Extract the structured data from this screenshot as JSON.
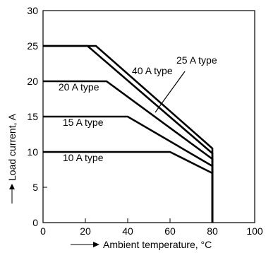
{
  "chart_data": {
    "type": "line",
    "xlabel": "Ambient temperature, °C",
    "ylabel": "Load current, A",
    "xlim": [
      0,
      100
    ],
    "ylim": [
      0,
      30
    ],
    "xticks": [
      "0",
      "20",
      "40",
      "60",
      "80",
      "100"
    ],
    "yticks": [
      "0",
      "5",
      "10",
      "15",
      "20",
      "25",
      "30"
    ],
    "grid": false,
    "series": [
      {
        "name": "40 A type",
        "x": [
          0,
          25,
          80,
          80
        ],
        "y": [
          25,
          25,
          10.5,
          0
        ]
      },
      {
        "name": "25 A type",
        "x": [
          0,
          21,
          80,
          80
        ],
        "y": [
          25,
          25,
          9.8,
          0
        ]
      },
      {
        "name": "20 A type",
        "x": [
          0,
          30,
          80,
          80
        ],
        "y": [
          20,
          20,
          9.0,
          0
        ]
      },
      {
        "name": "15 A type",
        "x": [
          0,
          40,
          80,
          80
        ],
        "y": [
          15,
          15,
          8.0,
          0
        ]
      },
      {
        "name": "10 A type",
        "x": [
          0,
          60,
          80,
          80
        ],
        "y": [
          10,
          10,
          7.0,
          0
        ]
      }
    ]
  }
}
